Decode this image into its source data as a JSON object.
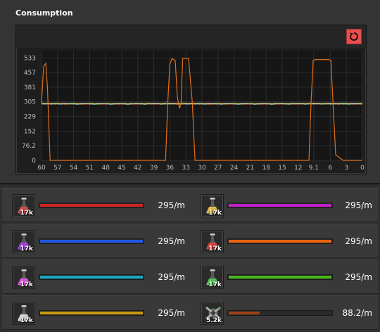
{
  "panel": {
    "title": "Consumption"
  },
  "chart_data": {
    "type": "line",
    "title": "",
    "xlabel": "",
    "ylabel": "",
    "y_ticks": [
      "533",
      "457",
      "381",
      "305",
      "229",
      "152",
      "76.2",
      "0"
    ],
    "x_ticks": [
      "60",
      "57",
      "54",
      "51",
      "48",
      "45",
      "42",
      "39",
      "36",
      "33",
      "30",
      "27",
      "24",
      "21",
      "18",
      "15",
      "12",
      "9.1",
      "6",
      "3",
      "0"
    ],
    "xlim": [
      60,
      0
    ],
    "ylim": [
      0,
      571
    ],
    "grid": true,
    "flat_series": {
      "value": 295,
      "colors": [
        "#c83c3c",
        "#3c64e6",
        "#2cb8c8",
        "#d8a018",
        "#c83cc8",
        "#e87020",
        "#5cc81c",
        "#e0e0e0"
      ]
    },
    "series": [
      {
        "color": "#e0701c",
        "x": [
          60,
          59.6,
          59.2,
          58.9,
          58.4,
          57.8,
          57.5,
          36.8,
          36.4,
          36.0,
          35.6,
          35.0,
          34.6,
          34.2,
          33.9,
          33.6,
          33.2,
          32.5,
          31.8,
          31.3,
          30.8,
          10.0,
          9.6,
          9.2,
          8.8,
          6.3,
          5.9,
          5.5,
          5.0,
          4.1,
          3.6,
          0
        ],
        "y": [
          300,
          490,
          505,
          380,
          0,
          0,
          0,
          0,
          300,
          500,
          530,
          520,
          330,
          270,
          300,
          530,
          530,
          530,
          300,
          0,
          0,
          0,
          300,
          520,
          525,
          525,
          520,
          300,
          30,
          10,
          0,
          0
        ]
      }
    ]
  },
  "reset_button": {
    "icon": "reset-icon"
  },
  "items": [
    {
      "name": "automation-science-pack",
      "icon_color": "#d04a4a",
      "count": "17k",
      "rate": "295/m",
      "bar_color": "#cc2424",
      "fill": 1.0
    },
    {
      "name": "utility-science-pack",
      "icon_color": "#e8b840",
      "count": "17k",
      "rate": "295/m",
      "bar_color": "#c020c8",
      "fill": 1.0
    },
    {
      "name": "logistic-science-pack",
      "icon_color": "#a040e0",
      "count": "17k",
      "rate": "295/m",
      "bar_color": "#2058e0",
      "fill": 1.0
    },
    {
      "name": "production-science-pack",
      "icon_color": "#e04040",
      "count": "17k",
      "rate": "295/m",
      "bar_color": "#e86010",
      "fill": 1.0
    },
    {
      "name": "space-science-pack",
      "icon_color": "#e050e0",
      "count": "17k",
      "rate": "295/m",
      "bar_color": "#18a8c0",
      "fill": 1.0
    },
    {
      "name": "chemical-science-pack",
      "icon_color": "#50c850",
      "count": "17k",
      "rate": "295/m",
      "bar_color": "#48b818",
      "fill": 1.0
    },
    {
      "name": "military-science-pack",
      "icon_color": "#d8d8d8",
      "count": "17k",
      "rate": "295/m",
      "bar_color": "#c89810",
      "fill": 1.0
    },
    {
      "name": "rocket-part",
      "icon_color": "#8a8a8a",
      "count": "5.2k",
      "rate": "88.2/m",
      "bar_color": "#a04018",
      "fill": 0.3
    }
  ]
}
